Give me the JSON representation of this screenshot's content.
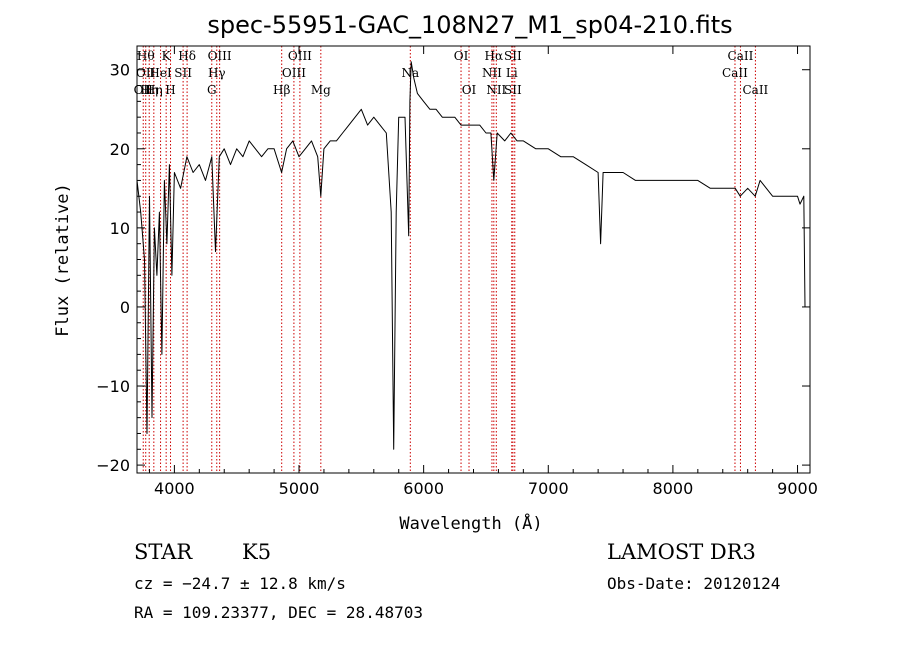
{
  "chart_data": {
    "type": "line",
    "title": "spec-55951-GAC_108N27_M1_sp04-210.fits",
    "xlabel": "Wavelength (Å)",
    "ylabel": "Flux (relative)",
    "xlim": [
      3700,
      9100
    ],
    "ylim": [
      -21,
      33
    ],
    "x_ticks": [
      4000,
      5000,
      6000,
      7000,
      8000,
      9000
    ],
    "y_ticks": [
      -20,
      -10,
      0,
      10,
      20,
      30
    ],
    "line_color": "#000000",
    "marker_color": "#cc0000",
    "spectrum": {
      "x": [
        3700,
        3730,
        3760,
        3780,
        3800,
        3820,
        3840,
        3860,
        3880,
        3900,
        3920,
        3940,
        3960,
        3980,
        4000,
        4050,
        4100,
        4150,
        4200,
        4250,
        4300,
        4330,
        4360,
        4400,
        4450,
        4500,
        4550,
        4600,
        4650,
        4700,
        4750,
        4800,
        4860,
        4900,
        4950,
        5000,
        5050,
        5100,
        5150,
        5175,
        5200,
        5250,
        5300,
        5350,
        5400,
        5450,
        5500,
        5550,
        5600,
        5650,
        5700,
        5740,
        5760,
        5780,
        5800,
        5850,
        5880,
        5890,
        5900,
        5920,
        5950,
        6000,
        6050,
        6100,
        6150,
        6200,
        6250,
        6300,
        6350,
        6400,
        6450,
        6500,
        6540,
        6563,
        6590,
        6650,
        6700,
        6750,
        6800,
        6900,
        7000,
        7100,
        7200,
        7300,
        7400,
        7420,
        7440,
        7500,
        7600,
        7700,
        7800,
        7900,
        8000,
        8100,
        8200,
        8300,
        8400,
        8500,
        8540,
        8600,
        8660,
        8700,
        8800,
        8900,
        9000,
        9020,
        9050,
        9060
      ],
      "y": [
        16,
        12,
        6,
        -16,
        14,
        -14,
        10,
        4,
        12,
        -6,
        16,
        8,
        18,
        4,
        17,
        15,
        19,
        17,
        18,
        16,
        19,
        7,
        19,
        20,
        18,
        20,
        19,
        21,
        20,
        19,
        20,
        20,
        17,
        20,
        21,
        19,
        20,
        21,
        19,
        14,
        20,
        21,
        21,
        22,
        23,
        24,
        25,
        23,
        24,
        23,
        22,
        12,
        -18,
        12,
        24,
        24,
        9,
        26,
        31,
        29,
        27,
        26,
        25,
        25,
        24,
        24,
        24,
        23,
        23,
        23,
        23,
        22,
        22,
        16,
        22,
        21,
        22,
        21,
        21,
        20,
        20,
        19,
        19,
        18,
        17,
        8,
        17,
        17,
        17,
        16,
        16,
        16,
        16,
        16,
        16,
        15,
        15,
        15,
        14,
        15,
        14,
        16,
        14,
        14,
        14,
        13,
        14,
        0
      ]
    },
    "absorption_lines": [
      {
        "x": 3750,
        "names": [
          "",
          "",
          "OII"
        ]
      },
      {
        "x": 3770,
        "names": [
          "Hθ",
          "OII",
          ""
        ]
      },
      {
        "x": 3798,
        "names": [
          "",
          "",
          "Hη"
        ]
      },
      {
        "x": 3835,
        "names": [
          "",
          "",
          "Hη"
        ]
      },
      {
        "x": 3889,
        "names": [
          "",
          "HeI",
          ""
        ]
      },
      {
        "x": 3934,
        "names": [
          "K",
          "",
          ""
        ]
      },
      {
        "x": 3969,
        "names": [
          "",
          "",
          "H"
        ]
      },
      {
        "x": 4070,
        "names": [
          "",
          "SII",
          ""
        ]
      },
      {
        "x": 4102,
        "names": [
          "Hδ",
          "",
          ""
        ]
      },
      {
        "x": 4300,
        "names": [
          "",
          "",
          "G"
        ]
      },
      {
        "x": 4340,
        "names": [
          "",
          "Hγ",
          ""
        ]
      },
      {
        "x": 4363,
        "names": [
          "OIII",
          "",
          ""
        ]
      },
      {
        "x": 4861,
        "names": [
          "",
          "",
          "Hβ"
        ]
      },
      {
        "x": 4959,
        "names": [
          "",
          "OIII",
          ""
        ]
      },
      {
        "x": 5007,
        "names": [
          "OIII",
          "",
          ""
        ]
      },
      {
        "x": 5175,
        "names": [
          "",
          "",
          "Mg"
        ]
      },
      {
        "x": 5893,
        "names": [
          "",
          "Na",
          ""
        ]
      },
      {
        "x": 6300,
        "names": [
          "OI",
          "",
          ""
        ]
      },
      {
        "x": 6364,
        "names": [
          "",
          "",
          "OI"
        ]
      },
      {
        "x": 6548,
        "names": [
          "",
          "NII",
          ""
        ]
      },
      {
        "x": 6563,
        "names": [
          "Hα",
          "",
          ""
        ]
      },
      {
        "x": 6583,
        "names": [
          "",
          "",
          "NII"
        ]
      },
      {
        "x": 6707,
        "names": [
          "",
          "Li",
          ""
        ]
      },
      {
        "x": 6716,
        "names": [
          "SII",
          "",
          "SII"
        ]
      },
      {
        "x": 6731,
        "names": [
          "",
          "",
          ""
        ]
      },
      {
        "x": 8498,
        "names": [
          "",
          "CaII",
          ""
        ]
      },
      {
        "x": 8542,
        "names": [
          "CaII",
          "",
          ""
        ]
      },
      {
        "x": 8662,
        "names": [
          "",
          "",
          "CaII"
        ]
      }
    ]
  },
  "info": {
    "object_class": "STAR",
    "subclass": "K5",
    "survey": "LAMOST DR3",
    "redshift": "cz = −24.7 ± 12.8 km/s",
    "obs_date": "Obs-Date: 20120124",
    "coordinates": "RA = 109.23377, DEC =  28.48703"
  }
}
